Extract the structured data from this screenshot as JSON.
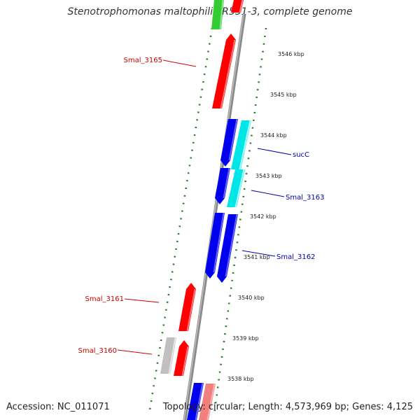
{
  "title": "Stenotrophomonas maltophilia R551-3, complete genome",
  "footer": {
    "accession": "Accession: NC_011071",
    "summary": "Topology: circular; Length: 4,573,969 bp; Genes: 4,125"
  },
  "colors": {
    "backbone": "#7a7a7a",
    "forward_gene": "#ff0000",
    "reverse_gene": "#0000ee",
    "highlight_gene": "#00e5e5",
    "rna_gene": "#33cc33",
    "pseudo_gene": "#c0c0c0",
    "ruler_dots": "#1a7f1a",
    "label_forward": "#cc0000",
    "label_reverse": "#0000aa"
  },
  "ruler_ticks": [
    {
      "kbp": 3546,
      "label": "3546 kbp"
    },
    {
      "kbp": 3545,
      "label": "3545 kbp"
    },
    {
      "kbp": 3544,
      "label": "3544 kbp"
    },
    {
      "kbp": 3543,
      "label": "3543 kbp"
    },
    {
      "kbp": 3542,
      "label": "3542 kbp"
    },
    {
      "kbp": 3541,
      "label": "3541 kbp"
    },
    {
      "kbp": 3540,
      "label": "3540 kbp"
    },
    {
      "kbp": 3539,
      "label": "3539 kbp"
    },
    {
      "kbp": 3538,
      "label": "3538 kbp"
    }
  ],
  "gene_labels": [
    {
      "name": "Smal_3165",
      "strand": "forward"
    },
    {
      "name": "sucC",
      "strand": "reverse"
    },
    {
      "name": "Smal_3163",
      "strand": "reverse"
    },
    {
      "name": "Smal_3162",
      "strand": "reverse"
    },
    {
      "name": "Smal_3161",
      "strand": "forward"
    },
    {
      "name": "Smal_3160",
      "strand": "forward"
    }
  ]
}
